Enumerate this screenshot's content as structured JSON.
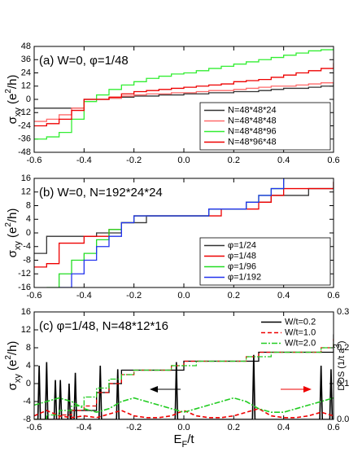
{
  "chart_data": [
    {
      "type": "line",
      "label": "(a) W=0,  φ=1/48",
      "drawstyle": "steps-post",
      "x": [
        -0.6,
        -0.55,
        -0.5,
        -0.45,
        -0.4,
        -0.35,
        -0.3,
        -0.25,
        -0.2,
        -0.15,
        -0.1,
        -0.05,
        0,
        0.05,
        0.1,
        0.15,
        0.2,
        0.25,
        0.3,
        0.35,
        0.4,
        0.45,
        0.5,
        0.55,
        0.6
      ],
      "xlim": [
        -0.6,
        0.6
      ],
      "xticks": [
        -0.6,
        -0.4,
        -0.2,
        {
          "value": 0,
          "label": "0.0"
        },
        0.2,
        0.4,
        0.6
      ],
      "ylim": [
        -48,
        48
      ],
      "yticks": [
        -48,
        -36,
        -24,
        -12,
        0,
        12,
        24,
        36,
        48
      ],
      "y_label": [
        "σ",
        "xy",
        " (e",
        "2",
        "/h)"
      ],
      "legend": "lower right",
      "legend_frame": true,
      "series": [
        {
          "name": "N=48*48*24",
          "color": "#333333",
          "values": [
            -8,
            -8,
            -8,
            -8,
            0,
            0,
            1,
            2,
            3,
            3,
            4,
            4,
            5,
            5,
            6,
            6,
            7,
            7,
            8,
            9,
            10,
            10,
            11,
            12,
            15
          ]
        },
        {
          "name": "N=48*48*48",
          "color": "#ff6a6a",
          "values": [
            -20,
            -18,
            -14,
            -8,
            0,
            0,
            1,
            3,
            4,
            5,
            5,
            6,
            6,
            7,
            8,
            8,
            9,
            10,
            11,
            12,
            12,
            13,
            14,
            15,
            16
          ]
        },
        {
          "name": "N=48*48*96",
          "color": "#33ee33",
          "values": [
            -36,
            -34,
            -30,
            -18,
            -2,
            4,
            9,
            13,
            16,
            19,
            21,
            23,
            24,
            26,
            28,
            30,
            32,
            34,
            36,
            38,
            40,
            42,
            44,
            45,
            46
          ]
        },
        {
          "name": "N=48*96*48",
          "color": "#ee0000",
          "values": [
            -24,
            -22,
            -18,
            -10,
            0,
            0,
            2,
            5,
            7,
            8,
            9,
            10,
            11,
            12,
            13,
            14,
            16,
            17,
            18,
            20,
            22,
            24,
            26,
            28,
            33
          ]
        }
      ]
    },
    {
      "type": "line",
      "label": "(b) W=0, N=192*24*24",
      "drawstyle": "steps-post",
      "x": [
        -0.6,
        -0.55,
        -0.5,
        -0.45,
        -0.4,
        -0.35,
        -0.3,
        -0.25,
        -0.2,
        -0.15,
        -0.1,
        -0.05,
        0,
        0.05,
        0.1,
        0.15,
        0.2,
        0.25,
        0.3,
        0.35,
        0.4,
        0.45,
        0.5,
        0.55,
        0.6
      ],
      "xlim": [
        -0.6,
        0.6
      ],
      "xticks": [
        -0.6,
        -0.4,
        -0.2,
        {
          "value": 0,
          "label": "0.0"
        },
        0.2,
        0.4,
        0.6
      ],
      "ylim": [
        -16,
        16
      ],
      "yticks": [
        -16,
        -12,
        -8,
        -4,
        0,
        4,
        8,
        12,
        16
      ],
      "y_label": [
        "σ",
        "xy",
        " (e",
        "2",
        "/h)"
      ],
      "legend": "lower right",
      "legend_frame": true,
      "series": [
        {
          "name": "φ=1/24",
          "color": "#333333",
          "values": [
            -6,
            -1,
            -1,
            -1,
            -1,
            0,
            0,
            3,
            3,
            5,
            5,
            5,
            5,
            5,
            7,
            7,
            7,
            9,
            9,
            11,
            11,
            11,
            13,
            13,
            15
          ]
        },
        {
          "name": "φ=1/48",
          "color": "#ee0000",
          "values": [
            -10,
            -9,
            -3,
            -3,
            -1,
            -1,
            1,
            3,
            5,
            5,
            5,
            5,
            5,
            5,
            5,
            7,
            7,
            7,
            9,
            11,
            13,
            13,
            13,
            13,
            15
          ]
        },
        {
          "name": "φ=1/96",
          "color": "#22dd22",
          "values": [
            null,
            -16,
            -12,
            -8,
            -6,
            -2,
            1,
            3,
            5,
            5,
            5,
            5,
            5,
            5,
            7,
            7,
            7,
            9,
            11,
            13,
            16,
            null,
            null,
            null,
            null
          ]
        },
        {
          "name": "φ=1/192",
          "color": "#2233ee",
          "values": [
            null,
            null,
            -16,
            -12,
            -8,
            -4,
            -1,
            3,
            5,
            5,
            5,
            5,
            5,
            5,
            7,
            7,
            7,
            9,
            11,
            13,
            17,
            null,
            null,
            null,
            null
          ]
        }
      ]
    },
    {
      "type": "line",
      "label": "(c) φ=1/48, N=48*12*16",
      "drawstyle": "steps-post",
      "x": [
        -0.6,
        -0.55,
        -0.5,
        -0.45,
        -0.4,
        -0.35,
        -0.3,
        -0.25,
        -0.2,
        -0.15,
        -0.1,
        -0.05,
        0,
        0.05,
        0.1,
        0.15,
        0.2,
        0.25,
        0.3,
        0.35,
        0.4,
        0.45,
        0.5,
        0.55,
        0.6
      ],
      "xlim": [
        -0.6,
        0.6
      ],
      "xticks": [
        -0.6,
        -0.4,
        -0.2,
        {
          "value": 0,
          "label": "0.0"
        },
        0.2,
        0.4,
        0.6
      ],
      "ylim": [
        -8,
        16
      ],
      "yticks": [
        -8,
        -4,
        0,
        4,
        8,
        12,
        16
      ],
      "y2lim": [
        0,
        0.3
      ],
      "y2ticks": [
        {
          "value": 0,
          "label": "0.0"
        },
        0.1,
        0.2,
        0.3
      ],
      "y_label": [
        "σ",
        "xy",
        " (e",
        "2",
        "/h)"
      ],
      "y2_label": [
        "DOS (1/t a",
        "3",
        ")"
      ],
      "x_label": [
        "E",
        "F",
        "/t"
      ],
      "legend": "upper right",
      "legend_frame": false,
      "series": [
        {
          "name": "W/t=0.2",
          "color": "#000000",
          "dash": "none",
          "values": [
            -8,
            -8,
            -8,
            -6,
            -6,
            -2,
            0,
            3,
            3,
            3,
            3,
            3,
            5,
            5,
            5,
            5,
            5,
            5,
            7,
            7,
            7,
            7,
            7,
            7,
            11
          ],
          "dos": {
            "x": [
              -0.6,
              -0.585,
              -0.58,
              -0.575,
              -0.555,
              -0.55,
              -0.545,
              -0.52,
              -0.515,
              -0.51,
              -0.5,
              -0.495,
              -0.49,
              -0.465,
              -0.46,
              -0.455,
              -0.44,
              -0.435,
              -0.43,
              -0.34,
              -0.335,
              -0.33,
              -0.27,
              -0.265,
              -0.26,
              -0.035,
              -0.03,
              -0.025,
              0.275,
              0.28,
              0.285,
              0.545,
              0.55,
              0.555,
              0.585,
              0.59,
              0.595,
              0.6
            ],
            "values": [
              0,
              0,
              0.15,
              0,
              0,
              0.16,
              0,
              0,
              0.11,
              0,
              0,
              0.11,
              0,
              0,
              0.1,
              0,
              0,
              0.13,
              0,
              0,
              0.15,
              0,
              0,
              0.14,
              0,
              0,
              0.16,
              0,
              0,
              0.18,
              0,
              0,
              0.15,
              0,
              0,
              0.14,
              0,
              0
            ]
          }
        },
        {
          "name": "W/t=1.0",
          "color": "#ee0000",
          "dash": "5,3",
          "values": [
            -8,
            -8,
            -7,
            -6,
            -5,
            -2,
            0,
            2,
            3,
            3,
            3,
            4,
            5,
            5,
            5,
            5,
            5,
            6,
            7,
            7,
            7,
            7,
            7,
            8,
            10
          ],
          "dos": {
            "x": [
              -0.6,
              -0.55,
              -0.5,
              -0.45,
              -0.4,
              -0.35,
              -0.3,
              -0.25,
              -0.2,
              -0.15,
              -0.1,
              -0.05,
              0,
              0.05,
              0.1,
              0.15,
              0.2,
              0.25,
              0.3,
              0.35,
              0.4,
              0.45,
              0.5,
              0.55,
              0.6
            ],
            "values": [
              0.01,
              0.025,
              0.01,
              0.005,
              0.01,
              0.005,
              0.015,
              0.025,
              0.01,
              0.005,
              0.005,
              0.01,
              0.025,
              0.01,
              0.005,
              0.005,
              0.01,
              0.02,
              0.03,
              0.01,
              0.005,
              0.005,
              0.01,
              0.02,
              0.01
            ]
          }
        },
        {
          "name": "W/t=2.0",
          "color": "#22cc22",
          "dash": "7,2,2,2",
          "values": [
            -8,
            -7,
            -6,
            -5,
            -3,
            -1,
            1,
            2,
            3,
            3,
            3,
            4,
            4,
            5,
            5,
            5,
            5,
            6,
            6,
            7,
            7,
            7,
            7,
            8,
            9
          ],
          "dos": {
            "x": [
              -0.6,
              -0.55,
              -0.5,
              -0.45,
              -0.4,
              -0.35,
              -0.3,
              -0.25,
              -0.2,
              -0.15,
              -0.1,
              -0.05,
              0,
              0.05,
              0.1,
              0.15,
              0.2,
              0.25,
              0.3,
              0.35,
              0.4,
              0.45,
              0.5,
              0.55,
              0.6
            ],
            "values": [
              0.04,
              0.05,
              0.06,
              0.05,
              0.03,
              0.02,
              0.03,
              0.05,
              0.06,
              0.05,
              0.04,
              0.03,
              0.02,
              0.03,
              0.04,
              0.05,
              0.06,
              0.05,
              0.03,
              0.02,
              0.02,
              0.03,
              0.04,
              0.05,
              0.06
            ]
          }
        }
      ]
    }
  ]
}
